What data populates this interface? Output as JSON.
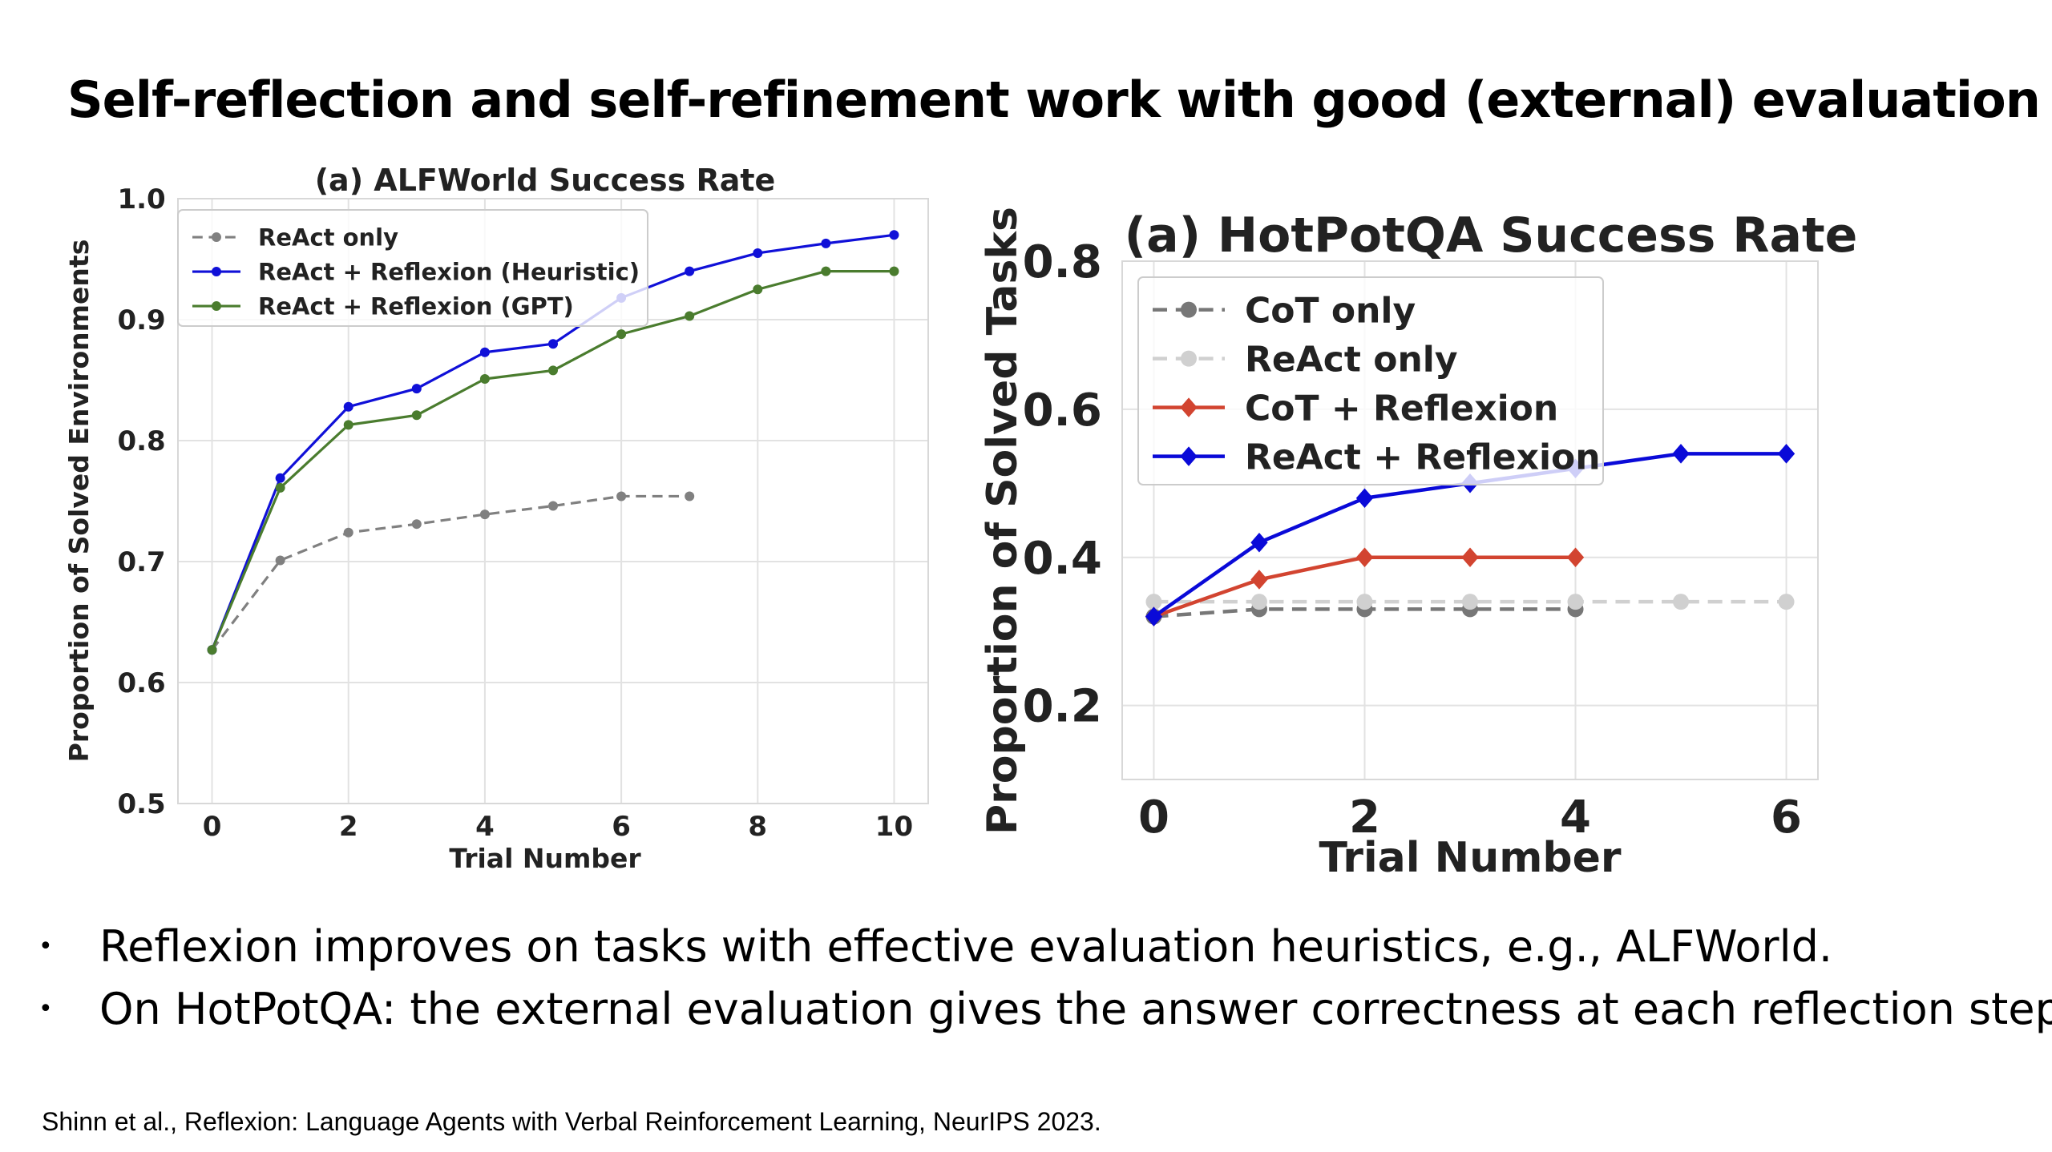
{
  "slide": {
    "title": "Self-reflection and self-refinement work with good (external) evaluation",
    "bullets": [
      "Reflexion improves on tasks with effective evaluation heuristics, e.g., ALFWorld.",
      "On HotPotQA: the external evaluation gives the answer correctness at each reflection step."
    ],
    "citation": "Shinn et al., Reflexion: Language Agents with Verbal Reinforcement Learning, NeurIPS 2023."
  },
  "chart_data": [
    {
      "type": "line",
      "title": "(a) ALFWorld Success Rate",
      "xlabel": "Trial Number",
      "ylabel": "Proportion of Solved Environments",
      "xlim": [
        -0.5,
        10.5
      ],
      "ylim": [
        0.5,
        1.0
      ],
      "xticks": [
        0,
        2,
        4,
        6,
        8,
        10
      ],
      "yticks": [
        0.5,
        0.6,
        0.7,
        0.8,
        0.9,
        1.0
      ],
      "grid": true,
      "legend_position": "top-left",
      "series": [
        {
          "name": "ReAct only",
          "color": "#808080",
          "dash": true,
          "marker": "circle",
          "x": [
            0,
            1,
            2,
            3,
            4,
            5,
            6,
            7
          ],
          "y": [
            0.627,
            0.701,
            0.724,
            0.731,
            0.739,
            0.746,
            0.754,
            0.754
          ]
        },
        {
          "name": "ReAct + Reflexion (Heuristic)",
          "color": "#1010d8",
          "dash": false,
          "marker": "circle",
          "x": [
            0,
            1,
            2,
            3,
            4,
            5,
            6,
            7,
            8,
            9,
            10
          ],
          "y": [
            0.627,
            0.769,
            0.828,
            0.843,
            0.873,
            0.88,
            0.918,
            0.94,
            0.955,
            0.963,
            0.97
          ]
        },
        {
          "name": "ReAct + Reflexion (GPT)",
          "color": "#4a7c2e",
          "dash": false,
          "marker": "circle",
          "x": [
            0,
            1,
            2,
            3,
            4,
            5,
            6,
            7,
            8,
            9,
            10
          ],
          "y": [
            0.627,
            0.761,
            0.813,
            0.821,
            0.851,
            0.858,
            0.888,
            0.903,
            0.925,
            0.94,
            0.94
          ]
        }
      ]
    },
    {
      "type": "line",
      "title": "(a) HotPotQA Success Rate",
      "xlabel": "Trial Number",
      "ylabel": "Proportion of Solved Tasks",
      "xlim": [
        -0.3,
        6.3
      ],
      "ylim": [
        0.1,
        0.8
      ],
      "xticks": [
        0,
        2,
        4,
        6
      ],
      "yticks": [
        0.2,
        0.4,
        0.6,
        0.8
      ],
      "grid": true,
      "legend_position": "top-left",
      "series": [
        {
          "name": "CoT only",
          "color": "#777777",
          "dash": true,
          "marker": "circle",
          "x": [
            0,
            1,
            2,
            3,
            4
          ],
          "y": [
            0.32,
            0.33,
            0.33,
            0.33,
            0.33
          ]
        },
        {
          "name": "ReAct only",
          "color": "#d0d0d0",
          "dash": true,
          "marker": "circle",
          "x": [
            0,
            1,
            2,
            3,
            4,
            5,
            6
          ],
          "y": [
            0.34,
            0.34,
            0.34,
            0.34,
            0.34,
            0.34,
            0.34
          ]
        },
        {
          "name": "CoT + Reflexion",
          "color": "#d24430",
          "dash": false,
          "marker": "diamond",
          "x": [
            0,
            1,
            2,
            3,
            4
          ],
          "y": [
            0.32,
            0.37,
            0.4,
            0.4,
            0.4
          ]
        },
        {
          "name": "ReAct + Reflexion",
          "color": "#0a0ad8",
          "dash": false,
          "marker": "diamond",
          "x": [
            0,
            1,
            2,
            3,
            4,
            5,
            6
          ],
          "y": [
            0.32,
            0.42,
            0.48,
            0.5,
            0.52,
            0.54,
            0.54
          ]
        }
      ]
    }
  ]
}
